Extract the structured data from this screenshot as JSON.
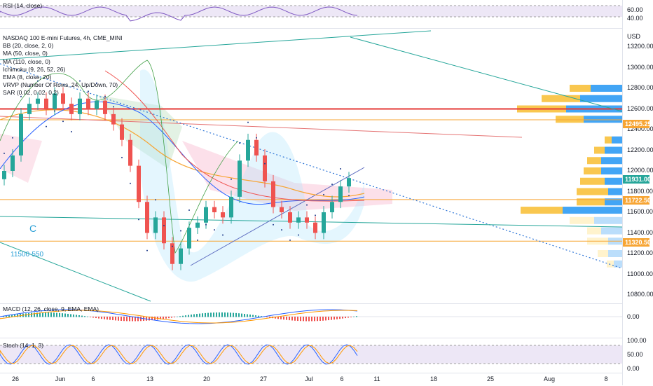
{
  "header": {
    "symbol_title": "NASDAQ 100 E-mini Futures, 4h, CME_MINI",
    "currency": "USD"
  },
  "legend": [
    "BB (20, close, 2, 0)",
    "MA (50, close, 0)",
    "MA (110, close, 0)",
    "Ichimoku (9, 26, 52, 26)",
    "EMA (8, close, 20)",
    "VRVP (Number Of Rows, 24, Up/Down, 70)",
    "SAR (0.02, 0.02, 0.2)"
  ],
  "annotations": {
    "wave": "C",
    "target": "11500-550"
  },
  "rsi": {
    "label": "RSI (14, close)",
    "ticks": [
      "60.00",
      "40.00"
    ],
    "levels": [
      70,
      30
    ]
  },
  "macd": {
    "label": "MACD (12, 26, close, 9, EMA, EMA)",
    "ticks": [
      "0.00"
    ]
  },
  "stoch": {
    "label": "Stoch (14, 1, 3)",
    "ticks": [
      "100.00",
      "50.00",
      "0.00"
    ],
    "levels": [
      80,
      20
    ]
  },
  "x_axis": [
    "26",
    "Jun",
    "6",
    "13",
    "20",
    "27",
    "Jul",
    "6",
    "11",
    "18",
    "25",
    "Aug",
    "8"
  ],
  "price_labels": [
    {
      "text": "12495.25",
      "color": "#f7a534"
    },
    {
      "text": "11931.00",
      "color": "#26a69a"
    },
    {
      "text": "11722.50",
      "color": "#f7a534"
    },
    {
      "text": "11320.50",
      "color": "#f7a534"
    }
  ],
  "chart_data": {
    "type": "candlestick",
    "title": "NASDAQ 100 E-mini Futures, 4h, CME_MINI",
    "ylabel": "USD",
    "ylim": [
      10800,
      13400
    ],
    "y_ticks": [
      13200,
      13000,
      12800,
      12600,
      12400,
      12200,
      12000,
      11800,
      11600,
      11400,
      11200,
      11000,
      10800
    ],
    "colors": {
      "up": "#26a69a",
      "down": "#ef5350",
      "resistance": "#e53935",
      "level": "#f7a534",
      "vp_up": "#42a5f5",
      "vp_down": "#f9c74f"
    },
    "horizontal_levels": [
      {
        "price": 12600,
        "color": "#e53935"
      },
      {
        "price": 12495.25,
        "color": "#f7a534"
      },
      {
        "price": 11722.5,
        "color": "#f7a534"
      },
      {
        "price": 11320.5,
        "color": "#f7a534"
      }
    ],
    "close_series": [
      12000,
      12150,
      12550,
      12650,
      12700,
      12600,
      12750,
      12650,
      12550,
      12700,
      12600,
      12680,
      12550,
      12450,
      12300,
      12050,
      11700,
      11400,
      11550,
      11300,
      11100,
      11250,
      11450,
      11500,
      11650,
      11600,
      11550,
      11750,
      12100,
      12300,
      12150,
      11900,
      11650,
      11600,
      11500,
      11550,
      11500,
      11400,
      11600,
      11700,
      11850,
      11931
    ],
    "last_price": 11931.0
  }
}
